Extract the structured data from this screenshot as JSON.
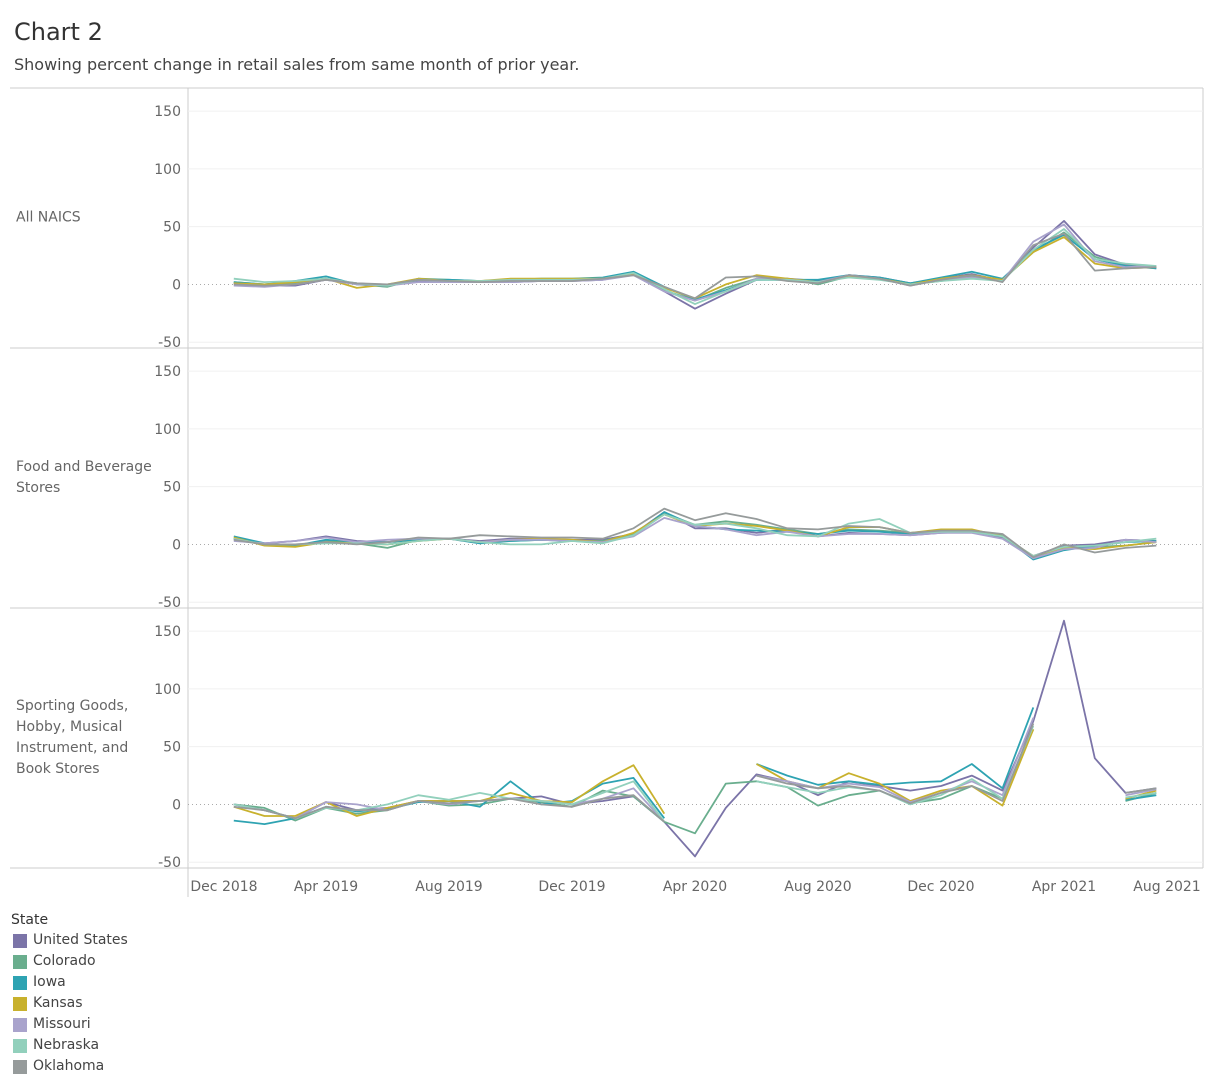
{
  "title": "Chart 2",
  "subtitle": "Showing percent change in retail sales from same month of prior year.",
  "legend": {
    "title": "State"
  },
  "chart_data": [
    {
      "type": "line",
      "label": "All NAICS",
      "ylim": [
        -55,
        170
      ],
      "yticks": [
        -50,
        0,
        50,
        100,
        150
      ],
      "series": [
        {
          "name": "United States",
          "color": "#7b74a8",
          "values": [
            1,
            -1,
            -1,
            4,
            1,
            -1,
            3,
            3,
            2,
            2,
            3,
            3,
            4,
            9,
            -6,
            -21,
            -8,
            4,
            5,
            3,
            8,
            6,
            1,
            5,
            9,
            3,
            32,
            55,
            26,
            17,
            14
          ]
        },
        {
          "name": "Colorado",
          "color": "#6aae8e",
          "values": [
            2,
            0,
            1,
            5,
            0,
            -2,
            5,
            4,
            3,
            3,
            4,
            4,
            5,
            10,
            -5,
            -14,
            -3,
            5,
            5,
            0,
            7,
            5,
            0,
            3,
            7,
            4,
            28,
            45,
            24,
            16,
            15
          ]
        },
        {
          "name": "Iowa",
          "color": "#2ea3b2",
          "values": [
            2,
            0,
            3,
            7,
            0,
            -1,
            4,
            4,
            3,
            4,
            5,
            5,
            6,
            11,
            -2,
            -13,
            -5,
            4,
            4,
            4,
            8,
            6,
            1,
            6,
            11,
            5,
            30,
            43,
            22,
            16,
            14
          ]
        },
        {
          "name": "Kansas",
          "color": "#c8b12d",
          "values": [
            1,
            0,
            2,
            5,
            -3,
            0,
            5,
            3,
            3,
            5,
            5,
            5,
            5,
            9,
            -3,
            -12,
            0,
            8,
            5,
            2,
            7,
            5,
            0,
            5,
            8,
            4,
            28,
            41,
            18,
            14,
            15
          ]
        },
        {
          "name": "Missouri",
          "color": "#a9a3cc",
          "values": [
            -1,
            -2,
            0,
            4,
            0,
            -1,
            2,
            2,
            2,
            2,
            3,
            3,
            4,
            8,
            -6,
            -14,
            -6,
            5,
            4,
            2,
            8,
            5,
            -1,
            4,
            6,
            3,
            37,
            52,
            20,
            15,
            16
          ]
        },
        {
          "name": "Nebraska",
          "color": "#92d0bc",
          "values": [
            5,
            2,
            3,
            5,
            1,
            -1,
            4,
            3,
            3,
            4,
            4,
            4,
            5,
            10,
            -4,
            -17,
            -6,
            4,
            4,
            2,
            6,
            4,
            0,
            3,
            5,
            3,
            30,
            48,
            22,
            18,
            16
          ]
        },
        {
          "name": "Oklahoma",
          "color": "#969b9b",
          "values": [
            0,
            -1,
            0,
            4,
            1,
            0,
            4,
            3,
            2,
            3,
            3,
            3,
            5,
            8,
            -2,
            -12,
            6,
            7,
            3,
            1,
            8,
            5,
            -1,
            4,
            8,
            2,
            34,
            44,
            12,
            14,
            15
          ]
        }
      ]
    },
    {
      "type": "line",
      "label": "Food and Beverage Stores",
      "ylim": [
        -55,
        170
      ],
      "yticks": [
        -50,
        0,
        50,
        100,
        150
      ],
      "series": [
        {
          "name": "United States",
          "color": "#7b74a8",
          "values": [
            5,
            1,
            3,
            7,
            3,
            2,
            5,
            5,
            3,
            5,
            5,
            4,
            4,
            9,
            28,
            14,
            14,
            10,
            13,
            7,
            10,
            9,
            8,
            10,
            11,
            6,
            -10,
            -1,
            0,
            4,
            3
          ]
        },
        {
          "name": "Colorado",
          "color": "#6aae8e",
          "values": [
            5,
            0,
            -1,
            3,
            1,
            -3,
            4,
            5,
            2,
            3,
            4,
            3,
            3,
            9,
            27,
            17,
            20,
            17,
            13,
            9,
            13,
            12,
            10,
            12,
            12,
            8,
            -12,
            -3,
            -2,
            -1,
            2
          ]
        },
        {
          "name": "Iowa",
          "color": "#2ea3b2",
          "values": [
            7,
            1,
            -1,
            4,
            2,
            2,
            4,
            5,
            1,
            3,
            4,
            3,
            2,
            8,
            28,
            16,
            13,
            12,
            11,
            9,
            12,
            11,
            9,
            12,
            11,
            7,
            -13,
            -5,
            -1,
            2,
            3
          ]
        },
        {
          "name": "Kansas",
          "color": "#c8b12d",
          "values": [
            6,
            -1,
            -2,
            2,
            1,
            0,
            3,
            5,
            2,
            4,
            5,
            4,
            2,
            10,
            26,
            16,
            18,
            16,
            12,
            7,
            15,
            15,
            10,
            13,
            13,
            7,
            -10,
            -3,
            -4,
            -1,
            2
          ]
        },
        {
          "name": "Missouri",
          "color": "#a9a3cc",
          "values": [
            3,
            1,
            3,
            6,
            2,
            4,
            5,
            5,
            2,
            4,
            4,
            3,
            2,
            7,
            23,
            16,
            13,
            8,
            11,
            7,
            9,
            9,
            8,
            10,
            10,
            5,
            -12,
            -4,
            -3,
            4,
            2
          ]
        },
        {
          "name": "Nebraska",
          "color": "#92d0bc",
          "values": [
            5,
            0,
            0,
            1,
            1,
            0,
            3,
            5,
            2,
            0,
            0,
            3,
            1,
            8,
            26,
            17,
            18,
            14,
            8,
            7,
            18,
            22,
            10,
            11,
            11,
            7,
            -10,
            -2,
            -1,
            2,
            5
          ]
        },
        {
          "name": "Oklahoma",
          "color": "#969b9b",
          "values": [
            4,
            0,
            0,
            2,
            0,
            2,
            6,
            5,
            8,
            7,
            6,
            6,
            5,
            14,
            31,
            21,
            27,
            22,
            14,
            13,
            16,
            15,
            10,
            12,
            12,
            9,
            -11,
            0,
            -7,
            -3,
            -1
          ]
        }
      ]
    },
    {
      "type": "line",
      "label": "Sporting Goods, Hobby, Musical Instrument, and Book Stores",
      "ylim": [
        -55,
        170
      ],
      "yticks": [
        -50,
        0,
        50,
        100,
        150
      ],
      "x": [
        "2019-01",
        "2019-02",
        "2019-03",
        "2019-04",
        "2019-05",
        "2019-06",
        "2019-07",
        "2019-08",
        "2019-09",
        "2019-10",
        "2019-11",
        "2019-12",
        "2020-01",
        "2020-02",
        "2020-03",
        "2020-04",
        "2020-05",
        "2020-06",
        "2020-07",
        "2020-08",
        "2020-09",
        "2020-10",
        "2020-11",
        "2020-12",
        "2021-01",
        "2021-02",
        "2021-03",
        "2021-04",
        "2021-05",
        "2021-06",
        "2021-07"
      ],
      "xticks": [
        {
          "value": "2018-12",
          "label": "Dec 2018"
        },
        {
          "value": "2019-04",
          "label": "Apr 2019"
        },
        {
          "value": "2019-08",
          "label": "Aug 2019"
        },
        {
          "value": "2019-12",
          "label": "Dec 2019"
        },
        {
          "value": "2020-04",
          "label": "Apr 2020"
        },
        {
          "value": "2020-08",
          "label": "Aug 2020"
        },
        {
          "value": "2020-12",
          "label": "Dec 2020"
        },
        {
          "value": "2021-04",
          "label": "Apr 2021"
        },
        {
          "value": "2021-08",
          "label": "Aug 2021"
        }
      ],
      "series": [
        {
          "name": "United States",
          "color": "#7b74a8",
          "values": [
            0,
            -5,
            -12,
            2,
            -5,
            -3,
            3,
            3,
            3,
            5,
            7,
            0,
            3,
            7,
            -15,
            -45,
            -3,
            26,
            20,
            8,
            20,
            16,
            12,
            16,
            25,
            12,
            72,
            159,
            40,
            10,
            14
          ]
        },
        {
          "name": "Colorado",
          "color": "#6aae8e",
          "values": [
            0,
            -3,
            -14,
            -3,
            -8,
            -5,
            3,
            -1,
            0,
            5,
            2,
            -2,
            12,
            7,
            -15,
            -25,
            18,
            20,
            15,
            -1,
            8,
            12,
            1,
            5,
            16,
            5,
            65,
            null,
            null,
            3,
            10
          ]
        },
        {
          "name": "Iowa",
          "color": "#2ea3b2",
          "values": [
            -14,
            -17,
            -12,
            -2,
            -6,
            -4,
            2,
            3,
            -2,
            20,
            0,
            3,
            18,
            23,
            -12,
            null,
            null,
            35,
            25,
            17,
            20,
            17,
            19,
            20,
            35,
            14,
            84,
            null,
            null,
            4,
            8
          ]
        },
        {
          "name": "Kansas",
          "color": "#c8b12d",
          "values": [
            -2,
            -10,
            -10,
            2,
            -10,
            -3,
            3,
            3,
            3,
            10,
            3,
            2,
            20,
            34,
            -8,
            null,
            null,
            35,
            20,
            14,
            27,
            18,
            3,
            12,
            16,
            -1,
            65,
            null,
            null,
            5,
            12
          ]
        },
        {
          "name": "Missouri",
          "color": "#a9a3cc",
          "values": [
            0,
            -5,
            -12,
            2,
            0,
            -5,
            3,
            0,
            3,
            5,
            3,
            0,
            5,
            14,
            -15,
            null,
            null,
            25,
            20,
            14,
            18,
            15,
            2,
            10,
            20,
            8,
            75,
            null,
            null,
            8,
            13
          ]
        },
        {
          "name": "Nebraska",
          "color": "#92d0bc",
          "values": [
            0,
            -5,
            -12,
            -3,
            -5,
            0,
            8,
            4,
            10,
            5,
            3,
            0,
            10,
            20,
            -15,
            null,
            null,
            20,
            15,
            10,
            15,
            12,
            0,
            8,
            22,
            5,
            68,
            null,
            null,
            6,
            10
          ]
        },
        {
          "name": "Oklahoma",
          "color": "#969b9b",
          "values": [
            -2,
            -5,
            -12,
            -2,
            -5,
            -5,
            3,
            1,
            3,
            5,
            0,
            -2,
            5,
            8,
            -15,
            null,
            null,
            25,
            18,
            14,
            16,
            12,
            1,
            10,
            16,
            3,
            70,
            null,
            null,
            10,
            14
          ]
        }
      ]
    }
  ]
}
